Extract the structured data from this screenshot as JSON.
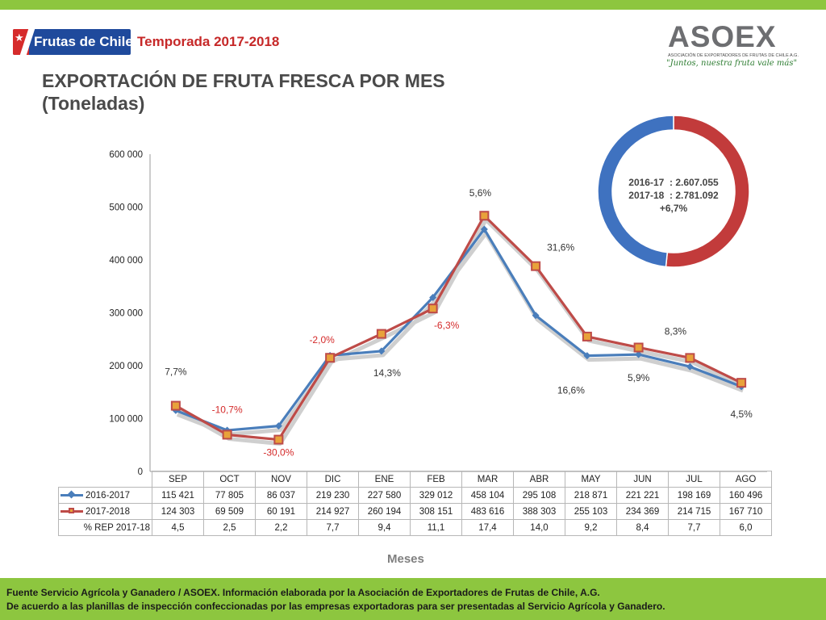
{
  "header": {
    "logo_text": "Frutas de Chile",
    "season": "Temporada 2017-2018",
    "title_line1": "EXPORTACIÓN DE FRUTA FRESCA POR MES",
    "title_line2": "(Toneladas)",
    "asoex_name": "ASOEX",
    "asoex_subtitle": "ASOCIACIÓN DE EXPORTADORES DE FRUTAS DE CHILE A.G.",
    "asoex_slogan": "\"Juntos, nuestra fruta vale más\""
  },
  "colors": {
    "series_2016": "#4a7ebb",
    "series_2017": "#be4b48",
    "marker_2017": "#e8a23a",
    "label_negative": "#d42a2a",
    "bar": "#8dc63f"
  },
  "chart_data": {
    "type": "line",
    "categories": [
      "SEP",
      "OCT",
      "NOV",
      "DIC",
      "ENE",
      "FEB",
      "MAR",
      "ABR",
      "MAY",
      "JUN",
      "JUL",
      "AGO"
    ],
    "series": [
      {
        "name": "2016-2017",
        "values": [
          115421,
          77805,
          86037,
          219230,
          227580,
          329012,
          458104,
          295108,
          218871,
          221221,
          198169,
          160496
        ]
      },
      {
        "name": "2017-2018",
        "values": [
          124303,
          69509,
          60191,
          214927,
          260194,
          308151,
          483616,
          388303,
          255103,
          234369,
          214715,
          167710
        ]
      }
    ],
    "rep_row": {
      "label": "% REP 2017-18",
      "values": [
        "4,5",
        "2,5",
        "2,2",
        "7,7",
        "9,4",
        "11,1",
        "17,4",
        "14,0",
        "9,2",
        "8,4",
        "7,7",
        "6,0"
      ]
    },
    "display_values": {
      "2016-2017": [
        "115 421",
        "77 805",
        "86 037",
        "219 230",
        "227 580",
        "329 012",
        "458 104",
        "295 108",
        "218 871",
        "221 221",
        "198 169",
        "160 496"
      ],
      "2017-2018": [
        "124 303",
        "69 509",
        "60 191",
        "214 927",
        "260 194",
        "308 151",
        "483 616",
        "388 303",
        "255 103",
        "234 369",
        "214 715",
        "167 710"
      ]
    },
    "change_labels": [
      "7,7%",
      "-10,7%",
      "-30,0%",
      "-2,0%",
      "14,3%",
      "-6,3%",
      "5,6%",
      "31,6%",
      "16,6%",
      "5,9%",
      "8,3%",
      "4,5%"
    ],
    "y_ticks": [
      0,
      100000,
      200000,
      300000,
      400000,
      500000,
      600000
    ],
    "y_tick_labels": [
      "0",
      "100 000",
      "200 000",
      "300 000",
      "400 000",
      "500 000",
      "600 000"
    ],
    "ylim": [
      0,
      600000
    ],
    "xlabel": "Meses",
    "ylabel": "",
    "grid": false,
    "legend": "table"
  },
  "donut": {
    "text_2016": "2016-17  : 2.607.055",
    "text_2017": "2017-18  : 2.781.092",
    "text_change": "+6,7%",
    "total_2016": 2607055,
    "total_2017": 2781092
  },
  "footer": {
    "line1": "Fuente Servicio Agrícola y Ganadero / ASOEX. Información elaborada por la Asociación de Exportadores de  Frutas de Chile, A.G.",
    "line2": "De acuerdo a las planillas de inspección confeccionadas por las empresas exportadoras  para ser presentadas al Servicio Agrícola y Ganadero."
  }
}
